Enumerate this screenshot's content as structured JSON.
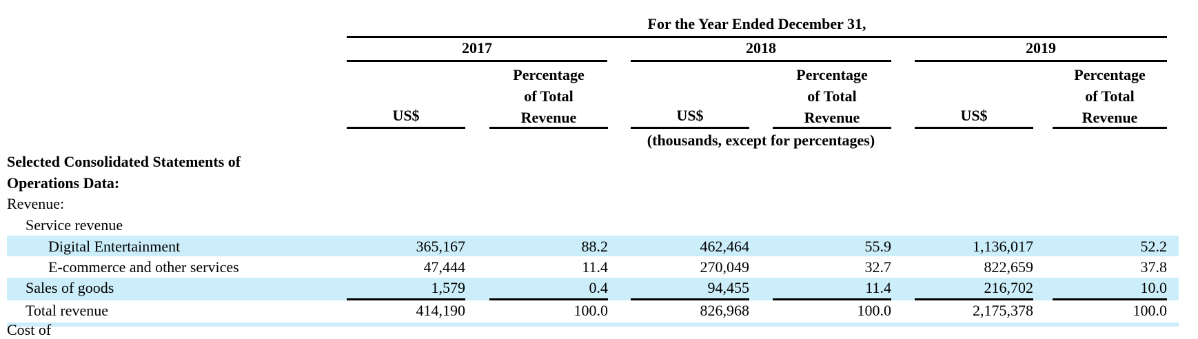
{
  "header": {
    "period": "For the Year Ended December 31,",
    "years": [
      "2017",
      "2018",
      "2019"
    ],
    "col_usd": "US$",
    "col_pct": [
      "Percentage",
      "of Total",
      "Revenue"
    ],
    "units_note": "(thousands, except for percentages)"
  },
  "section": {
    "title_line1": "Selected Consolidated Statements of",
    "title_line2": "Operations Data:"
  },
  "rows": {
    "revenue": "Revenue:",
    "service_revenue": "Service revenue",
    "digital": {
      "label": "Digital Entertainment",
      "v2017": "365,167",
      "p2017": "88.2",
      "v2018": "462,464",
      "p2018": "55.9",
      "v2019": "1,136,017",
      "p2019": "52.2"
    },
    "ecommerce": {
      "label": "E-commerce and other services",
      "v2017": "47,444",
      "p2017": "11.4",
      "v2018": "270,049",
      "p2018": "32.7",
      "v2019": "822,659",
      "p2019": "37.8"
    },
    "goods": {
      "label": "Sales of goods",
      "v2017": "1,579",
      "p2017": "0.4",
      "v2018": "94,455",
      "p2018": "11.4",
      "v2019": "216,702",
      "p2019": "10.0"
    },
    "total": {
      "label": "Total revenue",
      "v2017": "414,190",
      "p2017": "100.0",
      "v2018": "826,968",
      "p2018": "100.0",
      "v2019": "2,175,378",
      "p2019": "100.0"
    },
    "cost_partial": "Cost of"
  },
  "colors": {
    "band": "#cceefa",
    "text": "#000000"
  }
}
